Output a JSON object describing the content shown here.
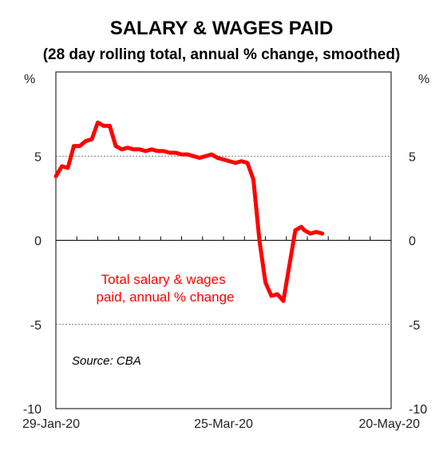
{
  "chart_data": {
    "type": "line",
    "title": "SALARY & WAGES PAID",
    "subtitle": "(28 day rolling total, annual % change, smoothed)",
    "ylabel_left": "%",
    "ylabel_right": "%",
    "ylim": [
      -10,
      10
    ],
    "yticks": [
      -10,
      -5,
      0,
      5
    ],
    "ytick_labels": [
      "-10",
      "-5",
      "0",
      "5"
    ],
    "xlim": [
      "2020-01-29",
      "2020-05-20"
    ],
    "xticks": [
      "2020-01-29",
      "2020-03-25",
      "2020-05-20"
    ],
    "xtick_labels": [
      "29-Jan-20",
      "25-Mar-20",
      "20-May-20"
    ],
    "grid": "dotted horizontal",
    "annotation": "Total salary & wages paid, annual % change",
    "annotation_lines": [
      "Total salary & wages",
      "paid, annual % change"
    ],
    "source": "Source: CBA",
    "colors": {
      "series": "#ff0000"
    },
    "series": [
      {
        "x": [
          "2020-01-29",
          "2020-01-31",
          "2020-02-02",
          "2020-02-04",
          "2020-02-06",
          "2020-02-08",
          "2020-02-10",
          "2020-02-12",
          "2020-02-14",
          "2020-02-16",
          "2020-02-18",
          "2020-02-20",
          "2020-02-22",
          "2020-02-24",
          "2020-02-26",
          "2020-02-28",
          "2020-03-01",
          "2020-03-03",
          "2020-03-05",
          "2020-03-07",
          "2020-03-09",
          "2020-03-11",
          "2020-03-13",
          "2020-03-15",
          "2020-03-17",
          "2020-03-19",
          "2020-03-21",
          "2020-03-23",
          "2020-03-25",
          "2020-03-27",
          "2020-03-29",
          "2020-03-31",
          "2020-04-02",
          "2020-04-04",
          "2020-04-06",
          "2020-04-08",
          "2020-04-10",
          "2020-04-12",
          "2020-04-14",
          "2020-04-16",
          "2020-04-18",
          "2020-04-20",
          "2020-04-21",
          "2020-04-23",
          "2020-04-25",
          "2020-04-27",
          "2020-04-29",
          "2020-05-01",
          "2020-05-03",
          "2020-05-04",
          "2020-05-06"
        ],
        "values": [
          3.8,
          4.4,
          4.3,
          5.6,
          5.6,
          5.9,
          6.0,
          7.0,
          6.8,
          6.8,
          5.6,
          5.4,
          5.5,
          5.4,
          5.4,
          5.3,
          5.4,
          5.3,
          5.3,
          5.2,
          5.2,
          5.1,
          5.1,
          5.0,
          4.9,
          5.0,
          5.1,
          4.9,
          4.8,
          4.7,
          4.6,
          4.7,
          4.6,
          3.6,
          0.0,
          -2.5,
          -3.3,
          -3.2,
          -3.6,
          -1.5,
          0.6,
          0.8,
          0.6,
          0.4,
          0.5,
          0.4,
          null,
          null,
          null,
          null,
          null
        ]
      }
    ]
  }
}
